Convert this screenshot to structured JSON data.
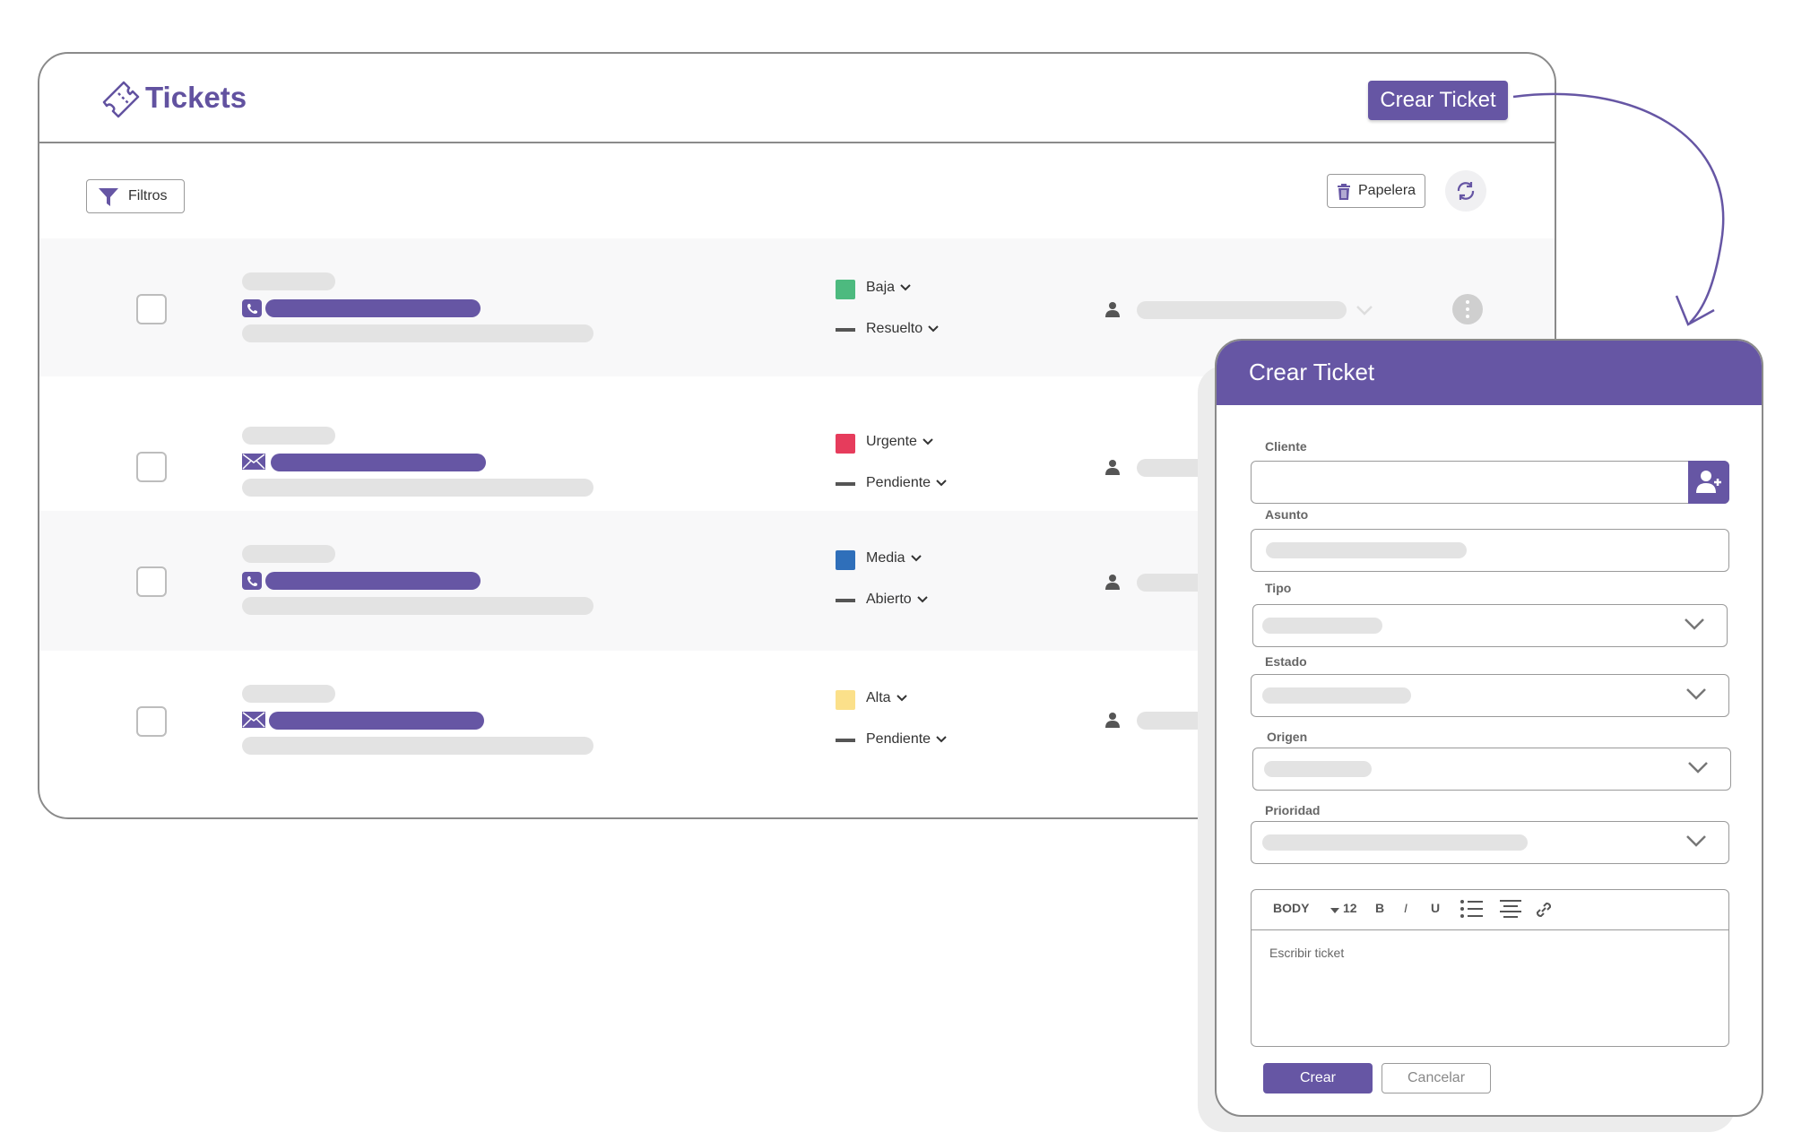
{
  "app": {
    "title": "Tickets",
    "create_button": "Crear Ticket",
    "filters_label": "Filtros",
    "trash_label": "Papelera"
  },
  "tickets": [
    {
      "channel": "phone",
      "priority": "Baja",
      "priority_color": "#4dba7f",
      "status": "Resuelto"
    },
    {
      "channel": "email",
      "priority": "Urgente",
      "priority_color": "#e63c5c",
      "status": "Pendiente"
    },
    {
      "channel": "phone",
      "priority": "Media",
      "priority_color": "#2f6fba",
      "status": "Abierto"
    },
    {
      "channel": "email",
      "priority": "Alta",
      "priority_color": "#fbe08a",
      "status": "Pendiente"
    }
  ],
  "modal": {
    "title": "Crear Ticket",
    "fields": {
      "cliente": "Cliente",
      "asunto": "Asunto",
      "tipo": "Tipo",
      "estado": "Estado",
      "origen": "Origen",
      "prioridad": "Prioridad"
    },
    "editor": {
      "style": "BODY",
      "size": "12",
      "bold": "B",
      "italic": "I",
      "underline": "U",
      "placeholder": "Escribir ticket"
    },
    "submit": "Crear",
    "cancel": "Cancelar"
  },
  "colors": {
    "accent": "#6656a4",
    "placeholder_bar": "#e3e3e3"
  }
}
